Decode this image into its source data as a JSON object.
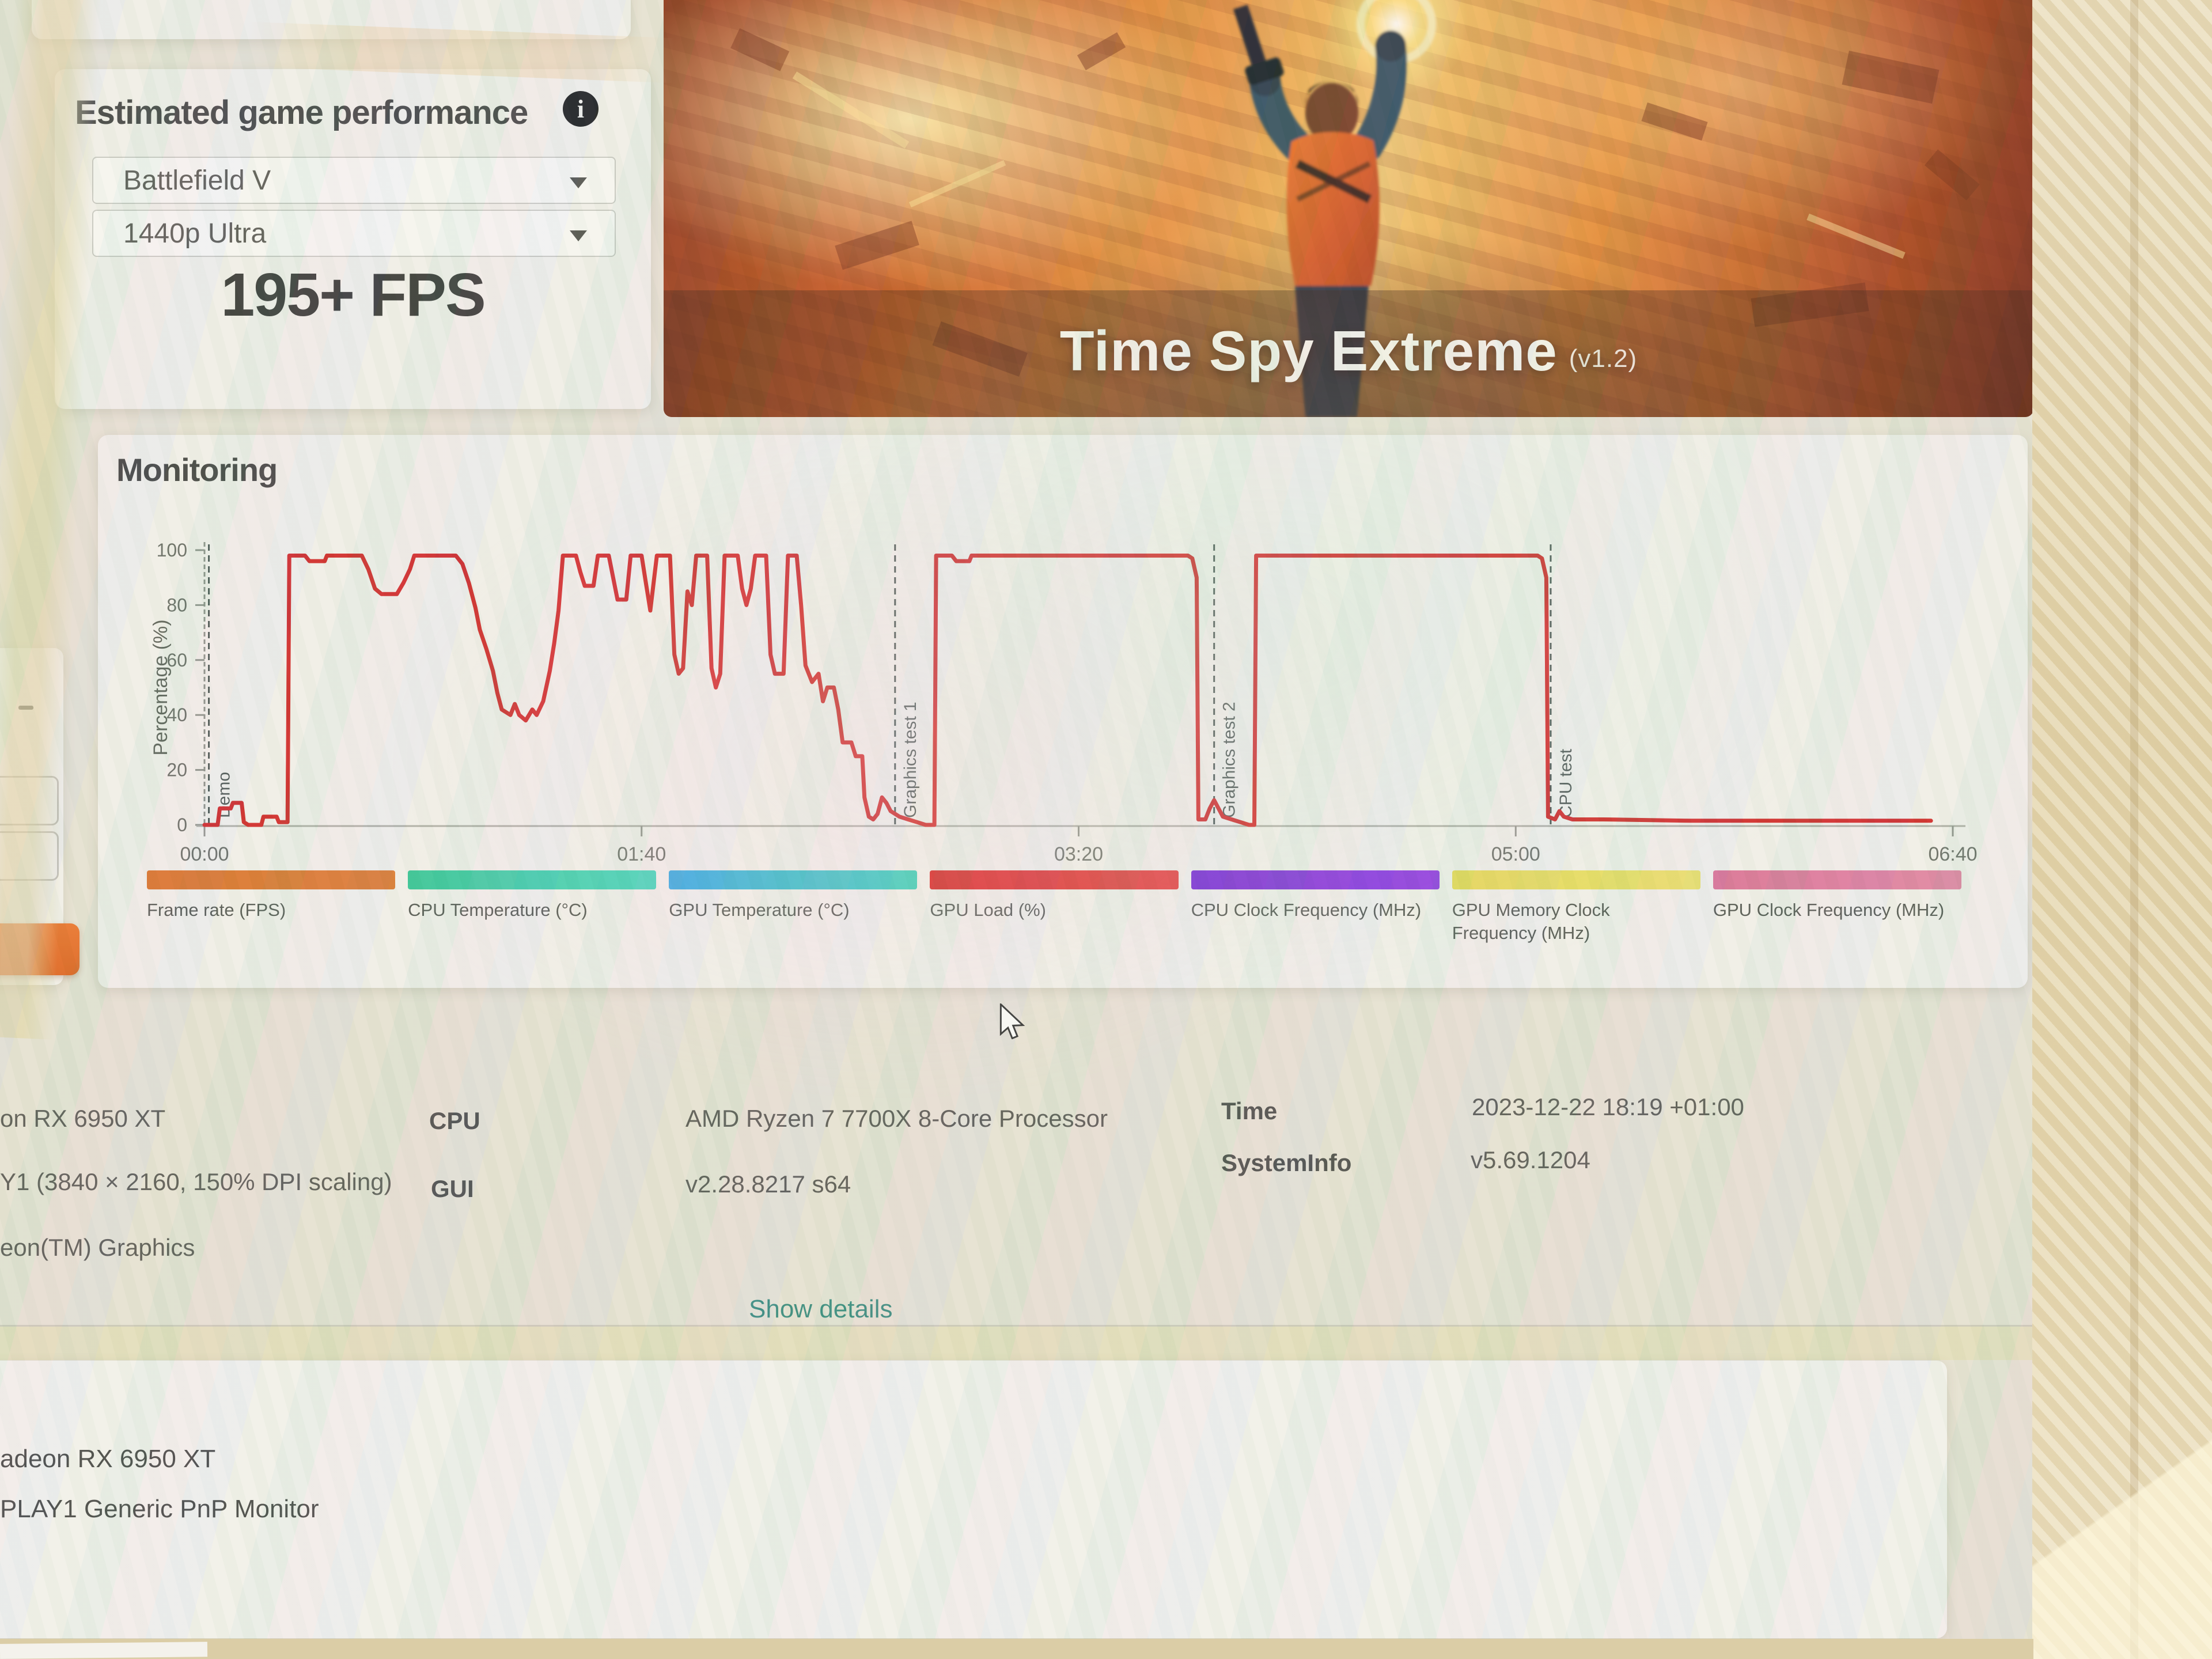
{
  "estimated": {
    "title": "Estimated game performance",
    "game": "Battlefield V",
    "preset": "1440p Ultra",
    "fps": "195+ FPS",
    "info_icon_glyph": "i"
  },
  "banner": {
    "title": "Time Spy Extreme",
    "version": "(v1.2)"
  },
  "monitoring": {
    "title": "Monitoring"
  },
  "chart_data": {
    "type": "line",
    "title": "Monitoring",
    "ylabel": "Percentage (%)",
    "xlabel": "",
    "ylim": [
      0,
      100
    ],
    "xlim_seconds": [
      0,
      400
    ],
    "grid": false,
    "y_ticks": [
      0,
      20,
      40,
      60,
      80,
      100
    ],
    "x_ticks": [
      {
        "t": 0,
        "label": "00:00"
      },
      {
        "t": 100,
        "label": "01:40"
      },
      {
        "t": 200,
        "label": "03:20"
      },
      {
        "t": 300,
        "label": "05:00"
      },
      {
        "t": 400,
        "label": "06:40"
      }
    ],
    "sections": [
      {
        "t": 1,
        "label": "Demo"
      },
      {
        "t": 158,
        "label": "Graphics test 1"
      },
      {
        "t": 231,
        "label": "Graphics test 2"
      },
      {
        "t": 308,
        "label": "CPU test"
      }
    ],
    "series": [
      {
        "name": "GPU Load (%)",
        "color": "#cf1d1d",
        "points": [
          [
            0,
            0
          ],
          [
            3,
            0
          ],
          [
            3.5,
            6
          ],
          [
            6,
            6
          ],
          [
            6.5,
            8
          ],
          [
            8.5,
            8
          ],
          [
            9,
            1
          ],
          [
            10,
            0
          ],
          [
            13,
            0
          ],
          [
            13.5,
            3
          ],
          [
            16.5,
            3
          ],
          [
            17,
            1
          ],
          [
            19,
            1
          ],
          [
            19.4,
            98
          ],
          [
            23,
            98
          ],
          [
            24,
            96
          ],
          [
            27.5,
            96
          ],
          [
            28,
            98
          ],
          [
            36,
            98
          ],
          [
            37.5,
            93
          ],
          [
            39,
            86
          ],
          [
            40.5,
            84
          ],
          [
            44,
            84
          ],
          [
            45.5,
            88
          ],
          [
            47,
            93
          ],
          [
            48,
            98
          ],
          [
            57.5,
            98
          ],
          [
            59,
            95
          ],
          [
            60.5,
            88
          ],
          [
            62,
            79
          ],
          [
            63,
            71
          ],
          [
            64.5,
            64
          ],
          [
            66,
            56
          ],
          [
            67,
            48
          ],
          [
            68,
            42
          ],
          [
            70,
            40
          ],
          [
            71,
            44
          ],
          [
            72,
            40
          ],
          [
            73.5,
            38
          ],
          [
            75,
            42
          ],
          [
            76,
            40
          ],
          [
            77.5,
            45
          ],
          [
            79,
            56
          ],
          [
            80,
            66
          ],
          [
            81,
            78
          ],
          [
            82,
            98
          ],
          [
            85,
            98
          ],
          [
            86,
            92
          ],
          [
            87,
            87
          ],
          [
            89,
            87
          ],
          [
            90,
            98
          ],
          [
            92.5,
            98
          ],
          [
            93.5,
            90
          ],
          [
            94.5,
            82
          ],
          [
            96.5,
            82
          ],
          [
            97.5,
            98
          ],
          [
            100,
            98
          ],
          [
            101,
            88
          ],
          [
            102,
            78
          ],
          [
            103.5,
            98
          ],
          [
            106.5,
            98
          ],
          [
            107.5,
            62
          ],
          [
            108.5,
            55
          ],
          [
            109.5,
            57
          ],
          [
            110.5,
            85
          ],
          [
            111.5,
            80
          ],
          [
            112.5,
            98
          ],
          [
            115,
            98
          ],
          [
            116,
            57
          ],
          [
            117,
            50
          ],
          [
            118,
            55
          ],
          [
            119,
            98
          ],
          [
            122,
            98
          ],
          [
            123,
            86
          ],
          [
            124,
            80
          ],
          [
            125,
            86
          ],
          [
            126,
            98
          ],
          [
            128.5,
            98
          ],
          [
            129.5,
            62
          ],
          [
            130.5,
            55
          ],
          [
            132.5,
            55
          ],
          [
            133.5,
            98
          ],
          [
            135.5,
            98
          ],
          [
            136.5,
            80
          ],
          [
            137.5,
            58
          ],
          [
            139,
            52
          ],
          [
            140.5,
            55
          ],
          [
            141.5,
            45
          ],
          [
            142.5,
            50
          ],
          [
            144,
            50
          ],
          [
            145,
            42
          ],
          [
            146,
            30
          ],
          [
            148,
            30
          ],
          [
            149,
            25
          ],
          [
            150.5,
            25
          ],
          [
            151,
            10
          ],
          [
            152,
            3
          ],
          [
            153,
            2
          ],
          [
            154,
            4
          ],
          [
            155,
            10
          ],
          [
            156,
            8
          ],
          [
            157,
            5
          ],
          [
            159,
            3
          ],
          [
            161,
            2
          ],
          [
            163,
            1
          ],
          [
            165,
            0
          ],
          [
            167,
            0
          ],
          [
            167.4,
            98
          ],
          [
            171,
            98
          ],
          [
            172,
            96
          ],
          [
            175,
            96
          ],
          [
            175.5,
            98
          ],
          [
            225,
            98
          ],
          [
            226,
            97
          ],
          [
            227,
            90
          ],
          [
            227.4,
            2
          ],
          [
            229,
            2
          ],
          [
            230,
            6
          ],
          [
            231,
            9
          ],
          [
            232,
            6
          ],
          [
            233,
            3
          ],
          [
            235,
            2
          ],
          [
            237,
            1
          ],
          [
            239,
            0
          ],
          [
            240.2,
            0
          ],
          [
            240.6,
            98
          ],
          [
            245,
            98
          ],
          [
            305,
            98
          ],
          [
            306,
            97
          ],
          [
            307,
            90
          ],
          [
            307.4,
            3
          ],
          [
            309,
            2
          ],
          [
            310,
            5
          ],
          [
            311,
            3
          ],
          [
            313,
            2
          ],
          [
            320,
            2
          ],
          [
            340,
            1.5
          ],
          [
            365,
            1.5
          ],
          [
            395,
            1.5
          ]
        ]
      }
    ],
    "legend": [
      {
        "label": "Frame rate (FPS)",
        "color": "#d96c20",
        "color2": "#db7428"
      },
      {
        "label": "CPU Temperature (°C)",
        "color": "#2cc291",
        "color2": "#3bd3b8"
      },
      {
        "label": "GPU Temperature (°C)",
        "color": "#2da4e0",
        "color2": "#32cdb4"
      },
      {
        "label": "GPU Load (%)",
        "color": "#d81717",
        "color2": "#e23535"
      },
      {
        "label": "CPU Clock Frequency (MHz)",
        "color": "#6f1bd0",
        "color2": "#8d2fe2"
      },
      {
        "label": "GPU Memory Clock Frequency (MHz)",
        "color": "#e5d64a",
        "color2": "#eadf63"
      },
      {
        "label": "GPU Clock Frequency (MHz)",
        "color": "#d96a90",
        "color2": "#e07f9f"
      }
    ],
    "legend_position": "bottom"
  },
  "info": {
    "left": [
      "on RX 6950 XT",
      "Y1 (3840 × 2160, 150% DPI scaling)",
      "eon(TM) Graphics"
    ],
    "cpu_label": "CPU",
    "cpu_value": "AMD Ryzen 7 7700X 8-Core Processor",
    "gui_label": "GUI",
    "gui_value": "v2.28.8217 s64",
    "time_label": "Time",
    "time_value": "2023-12-22 18:19 +01:00",
    "sysinfo_label": "SystemInfo",
    "sysinfo_value": "v5.69.1204"
  },
  "links": {
    "show_details": "Show details"
  },
  "bottom": [
    "adeon RX 6950 XT",
    "PLAY1 Generic PnP Monitor"
  ],
  "colors": {
    "accent_orange": "#dd5c15",
    "link_teal": "#2f8577",
    "series_red": "#cf1d1d",
    "card_bg": "#f1efe9",
    "page_bg": "#e6e1d2"
  }
}
